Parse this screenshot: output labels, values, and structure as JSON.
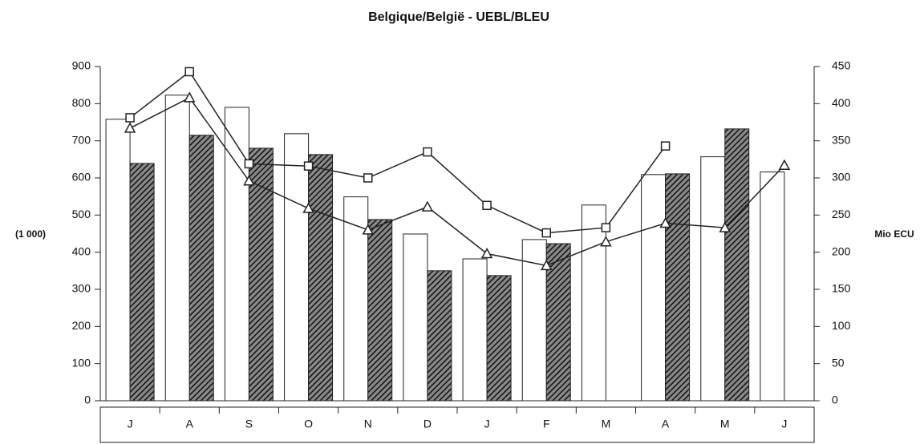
{
  "chart_data": {
    "type": "bar",
    "title": "Belgique/België - UEBL/BLEU",
    "y_label": "(1 000)",
    "y2_label": "Mio ECU",
    "categories": [
      "J",
      "A",
      "S",
      "O",
      "N",
      "D",
      "J",
      "F",
      "M",
      "A",
      "M",
      "J"
    ],
    "series": [
      {
        "type": "bar",
        "color": "#ffffff",
        "values": [
          758,
          823,
          790,
          719,
          549,
          449,
          382,
          434,
          527,
          609,
          657,
          616
        ]
      },
      {
        "type": "bar",
        "color": "#444444",
        "values": [
          639,
          715,
          680,
          663,
          488,
          350,
          337,
          423,
          null,
          611,
          732,
          null
        ]
      },
      {
        "type": "line",
        "marker": "square",
        "axis": "y2",
        "color": "#222222",
        "values": [
          381,
          443,
          319,
          316,
          300,
          335,
          263,
          226,
          233,
          343,
          null,
          null
        ]
      },
      {
        "type": "line",
        "marker": "triangle",
        "axis": "y2",
        "color": "#222222",
        "values": [
          367,
          408,
          296,
          259,
          230,
          261,
          198,
          182,
          214,
          239,
          233,
          317
        ]
      }
    ],
    "ylim": [
      0,
      900
    ],
    "yticks": [
      0,
      100,
      200,
      300,
      400,
      500,
      600,
      700,
      800,
      900
    ],
    "y2lim": [
      0,
      450
    ],
    "y2ticks": [
      0,
      50,
      100,
      150,
      200,
      250,
      300,
      350,
      400,
      450
    ]
  }
}
